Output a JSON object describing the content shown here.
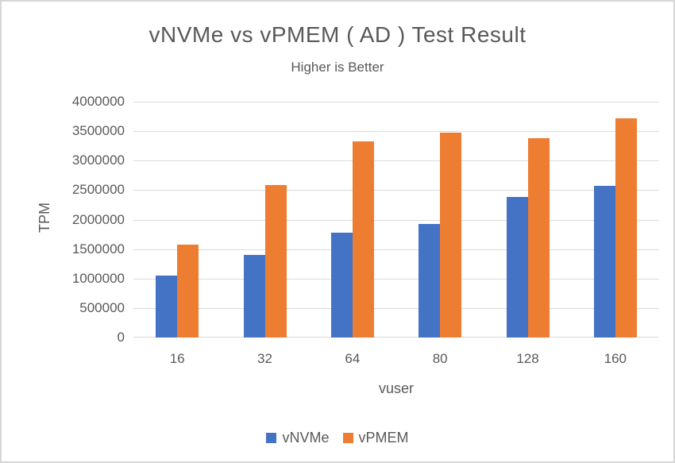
{
  "chart_data": {
    "type": "bar",
    "title": "vNVMe vs vPMEM ( AD ) Test Result",
    "subtitle": "Higher is Better",
    "xlabel": "vuser",
    "ylabel": "TPM",
    "categories": [
      "16",
      "32",
      "64",
      "80",
      "128",
      "160"
    ],
    "series": [
      {
        "name": "vNVMe",
        "color": "#4472C4",
        "values": [
          1050000,
          1400000,
          1780000,
          1930000,
          2390000,
          2570000
        ]
      },
      {
        "name": "vPMEM",
        "color": "#ED7D31",
        "values": [
          1570000,
          2580000,
          3330000,
          3470000,
          3380000,
          3720000
        ]
      }
    ],
    "ylim": [
      0,
      4000000
    ],
    "ytick_step": 500000,
    "grid": true,
    "legend_position": "bottom",
    "colors": {
      "text": "#595959",
      "gridline": "#d9d9d9",
      "frame_border": "#d6d6d6",
      "background": "#ffffff"
    }
  }
}
